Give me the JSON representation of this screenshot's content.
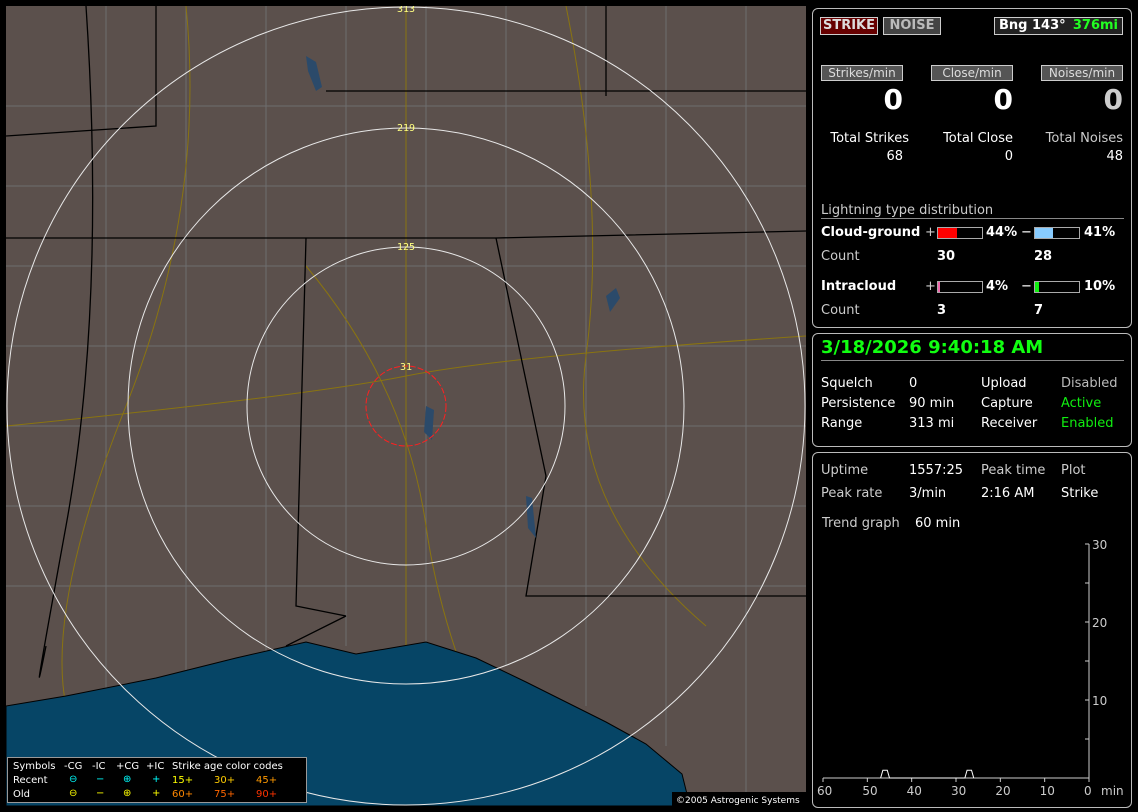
{
  "map": {
    "ring_labels": [
      "313",
      "219",
      "125",
      "31"
    ],
    "copyright": "©2005 Astrogenic Systems",
    "colors": {
      "land": "#5b504c",
      "water": "#064566",
      "close_ring": "#ff2020",
      "ring": "#e8e8e8"
    }
  },
  "legend": {
    "symbols_label": "Symbols",
    "cols": [
      "-CG",
      "-IC",
      "+CG",
      "+IC"
    ],
    "rows": [
      "Recent",
      "Old"
    ],
    "recent_glyphs": [
      "⊖",
      "−",
      "⊕",
      "+"
    ],
    "old_glyphs": [
      "⊖",
      "−",
      "⊕",
      "+"
    ],
    "age_title": "Strike age color codes",
    "recent_ages": [
      "15+",
      "30+",
      "45+"
    ],
    "old_ages": [
      "60+",
      "75+",
      "90+"
    ]
  },
  "top": {
    "strike_btn": "STRIKE",
    "noise_btn": "NOISE",
    "bearing": "Bng 143°",
    "distance": "376mi",
    "rates": [
      {
        "label": "Strikes/min",
        "value": "0"
      },
      {
        "label": "Close/min",
        "value": "0"
      },
      {
        "label": "Noises/min",
        "value": "0"
      }
    ],
    "totals": [
      {
        "label": "Total Strikes",
        "value": "68"
      },
      {
        "label": "Total Close",
        "value": "0"
      },
      {
        "label": "Total Noises",
        "value": "48"
      }
    ],
    "dist_title": "Lightning type distribution",
    "cg": {
      "label": "Cloud-ground",
      "pos_pct": "44%",
      "neg_pct": "41%",
      "pos_fill": 44,
      "neg_fill": 41,
      "count_label": "Count",
      "pos_count": "30",
      "neg_count": "28"
    },
    "ic": {
      "label": "Intracloud",
      "pos_pct": "4%",
      "neg_pct": "10%",
      "pos_fill": 4,
      "neg_fill": 10,
      "count_label": "Count",
      "pos_count": "3",
      "neg_count": "7"
    },
    "plus": "+",
    "minus": "−"
  },
  "status": {
    "datetime": "3/18/2026 9:40:18 AM",
    "rows": [
      [
        "Squelch",
        "0",
        "Upload",
        "Disabled"
      ],
      [
        "Persistence",
        "90 min",
        "Capture",
        "Active"
      ],
      [
        "Range",
        "313 mi",
        "Receiver",
        "Enabled"
      ]
    ]
  },
  "stats": {
    "uptime_label": "Uptime",
    "uptime": "1557:25",
    "peak_time_label": "Peak time",
    "plot_label": "Plot",
    "peak_rate_label": "Peak rate",
    "peak_rate": "3/min",
    "peak_time": "2:16 AM",
    "plot": "Strike",
    "trend_label": "Trend graph",
    "trend": "60 min"
  },
  "chart_data": {
    "type": "line",
    "x_ticks": [
      "60",
      "50",
      "40",
      "30",
      "20",
      "10",
      "0"
    ],
    "x_unit": "min",
    "y_ticks": [
      "30",
      "20",
      "10"
    ],
    "xlim": [
      60,
      0
    ],
    "ylim": [
      0,
      30
    ],
    "x": [
      47,
      46.5,
      45.5,
      45,
      28,
      27.5,
      26.5,
      26
    ],
    "y": [
      0,
      1,
      1,
      0,
      0,
      1,
      1,
      0
    ]
  }
}
